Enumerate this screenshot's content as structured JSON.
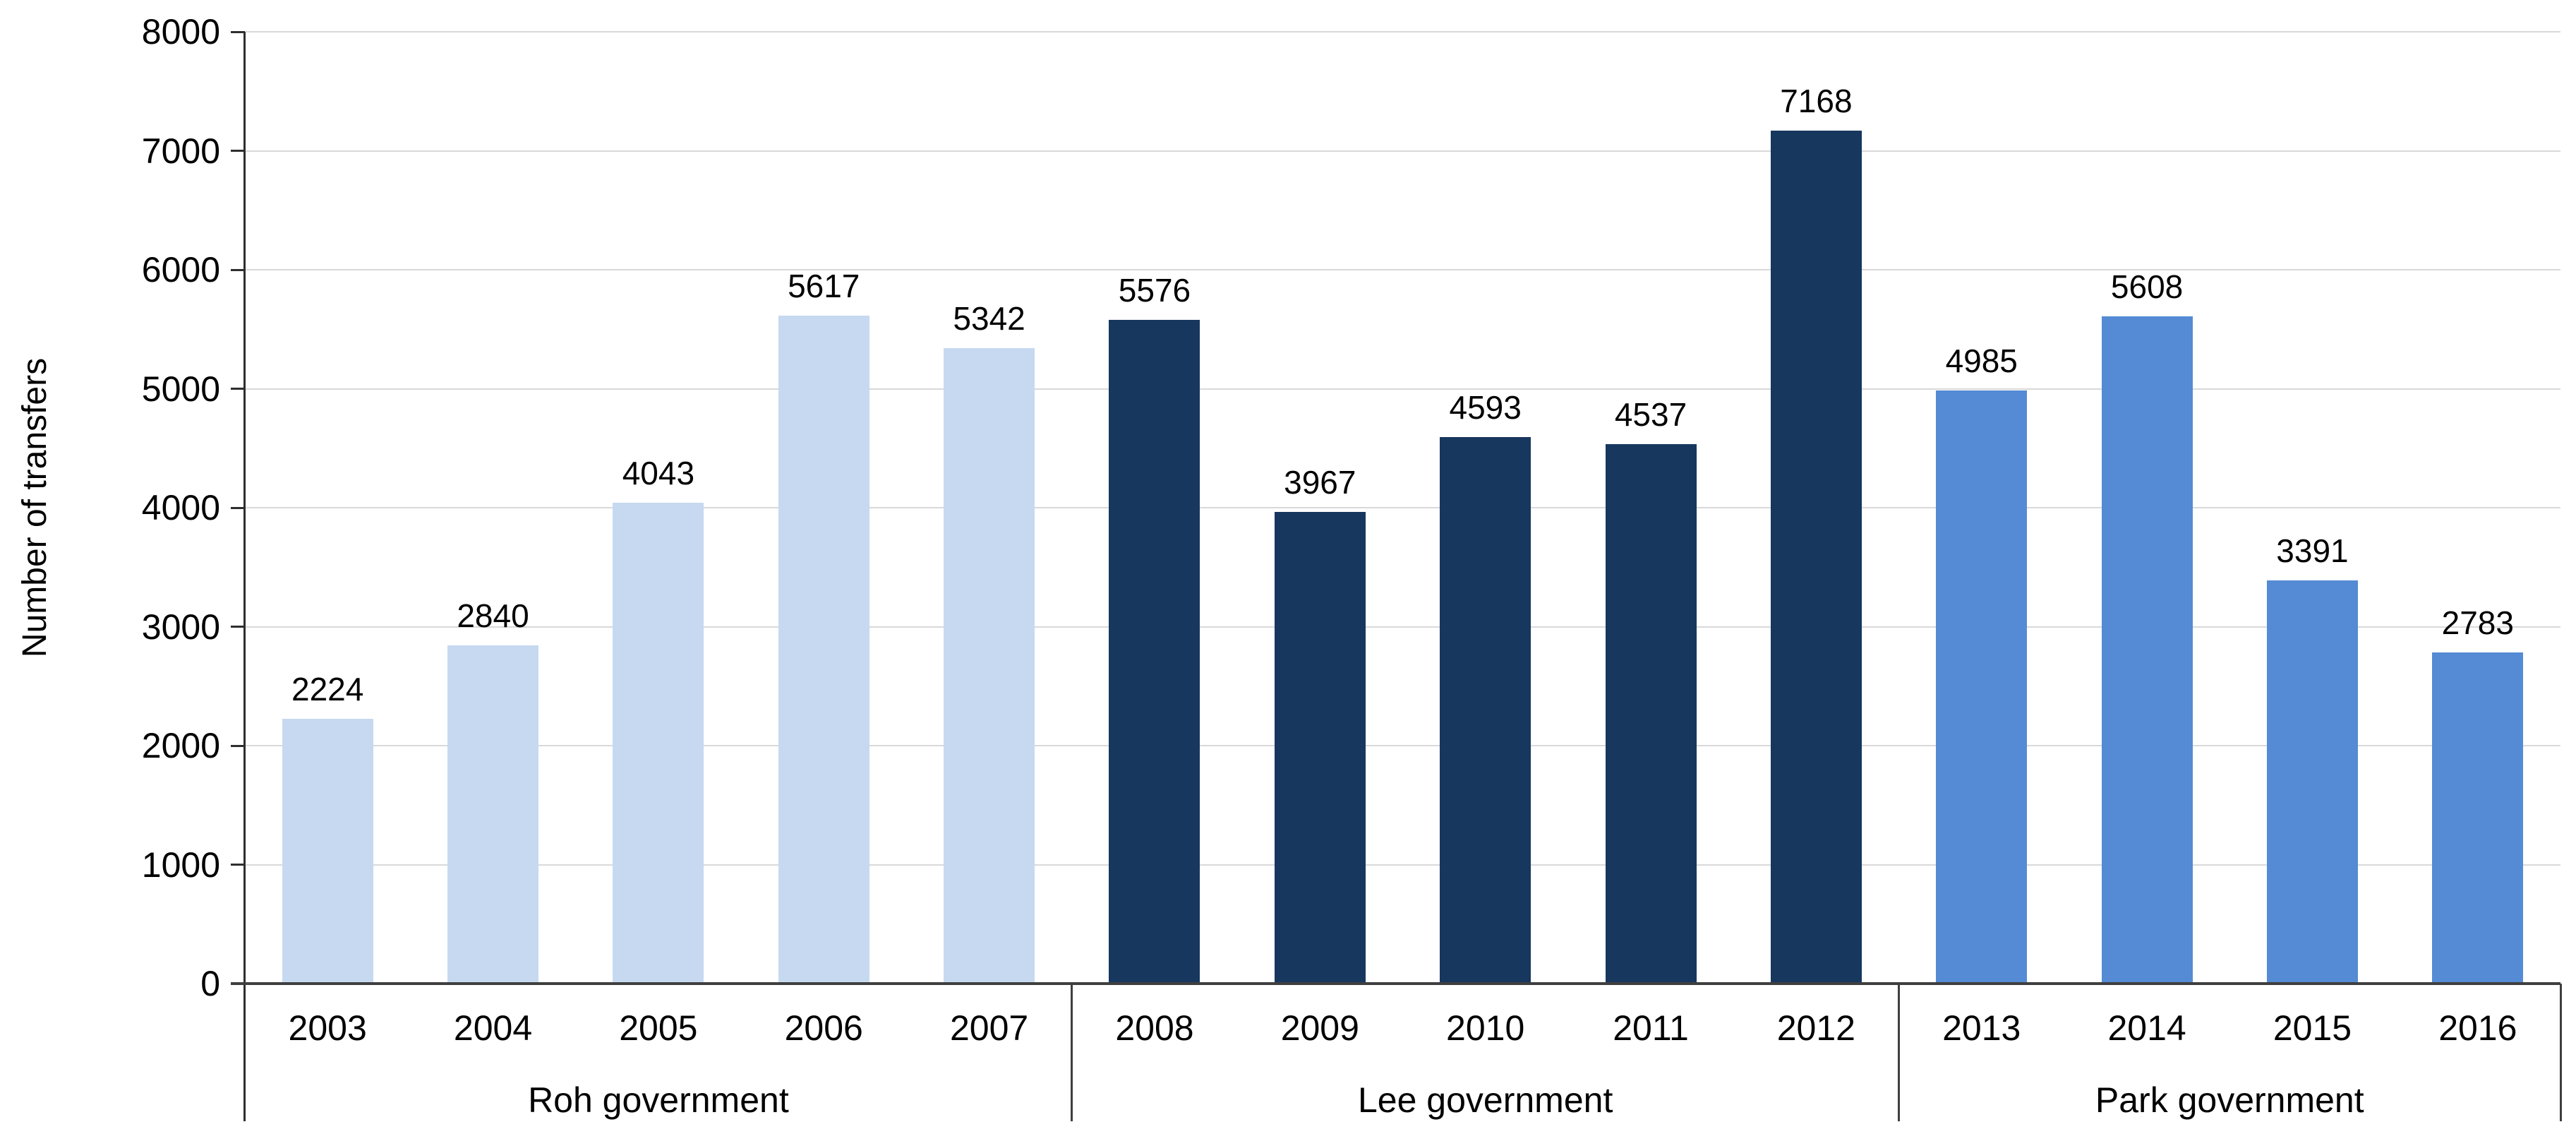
{
  "chart_data": {
    "type": "bar",
    "title": "",
    "xlabel": "",
    "ylabel": "Number of transfers",
    "ylim": [
      0,
      8000
    ],
    "ytick_step": 1000,
    "ytick_labels": [
      "0",
      "1000",
      "2000",
      "3000",
      "4000",
      "5000",
      "6000",
      "7000",
      "8000"
    ],
    "grid": "horizontal",
    "legend": "none",
    "categories": [
      "2003",
      "2004",
      "2005",
      "2006",
      "2007",
      "2008",
      "2009",
      "2010",
      "2011",
      "2012",
      "2013",
      "2014",
      "2015",
      "2016"
    ],
    "values": [
      2224,
      2840,
      4043,
      5617,
      5342,
      5576,
      3967,
      4593,
      4537,
      7168,
      4985,
      5608,
      3391,
      2783
    ],
    "data_labels": [
      "2224",
      "2840",
      "4043",
      "5617",
      "5342",
      "5576",
      "3967",
      "4593",
      "4537",
      "7168",
      "4985",
      "5608",
      "3391",
      "2783"
    ],
    "groups": [
      {
        "label": "Roh government",
        "count": 5,
        "color": "#c6d9f1"
      },
      {
        "label": "Lee government",
        "count": 5,
        "color": "#17375e"
      },
      {
        "label": "Park government",
        "count": 4,
        "color": "#548bd4"
      }
    ],
    "colors": {
      "gridline": "#d9d9d9",
      "axis": "#3f3f3f",
      "text": "#000000",
      "background": "#ffffff"
    }
  }
}
